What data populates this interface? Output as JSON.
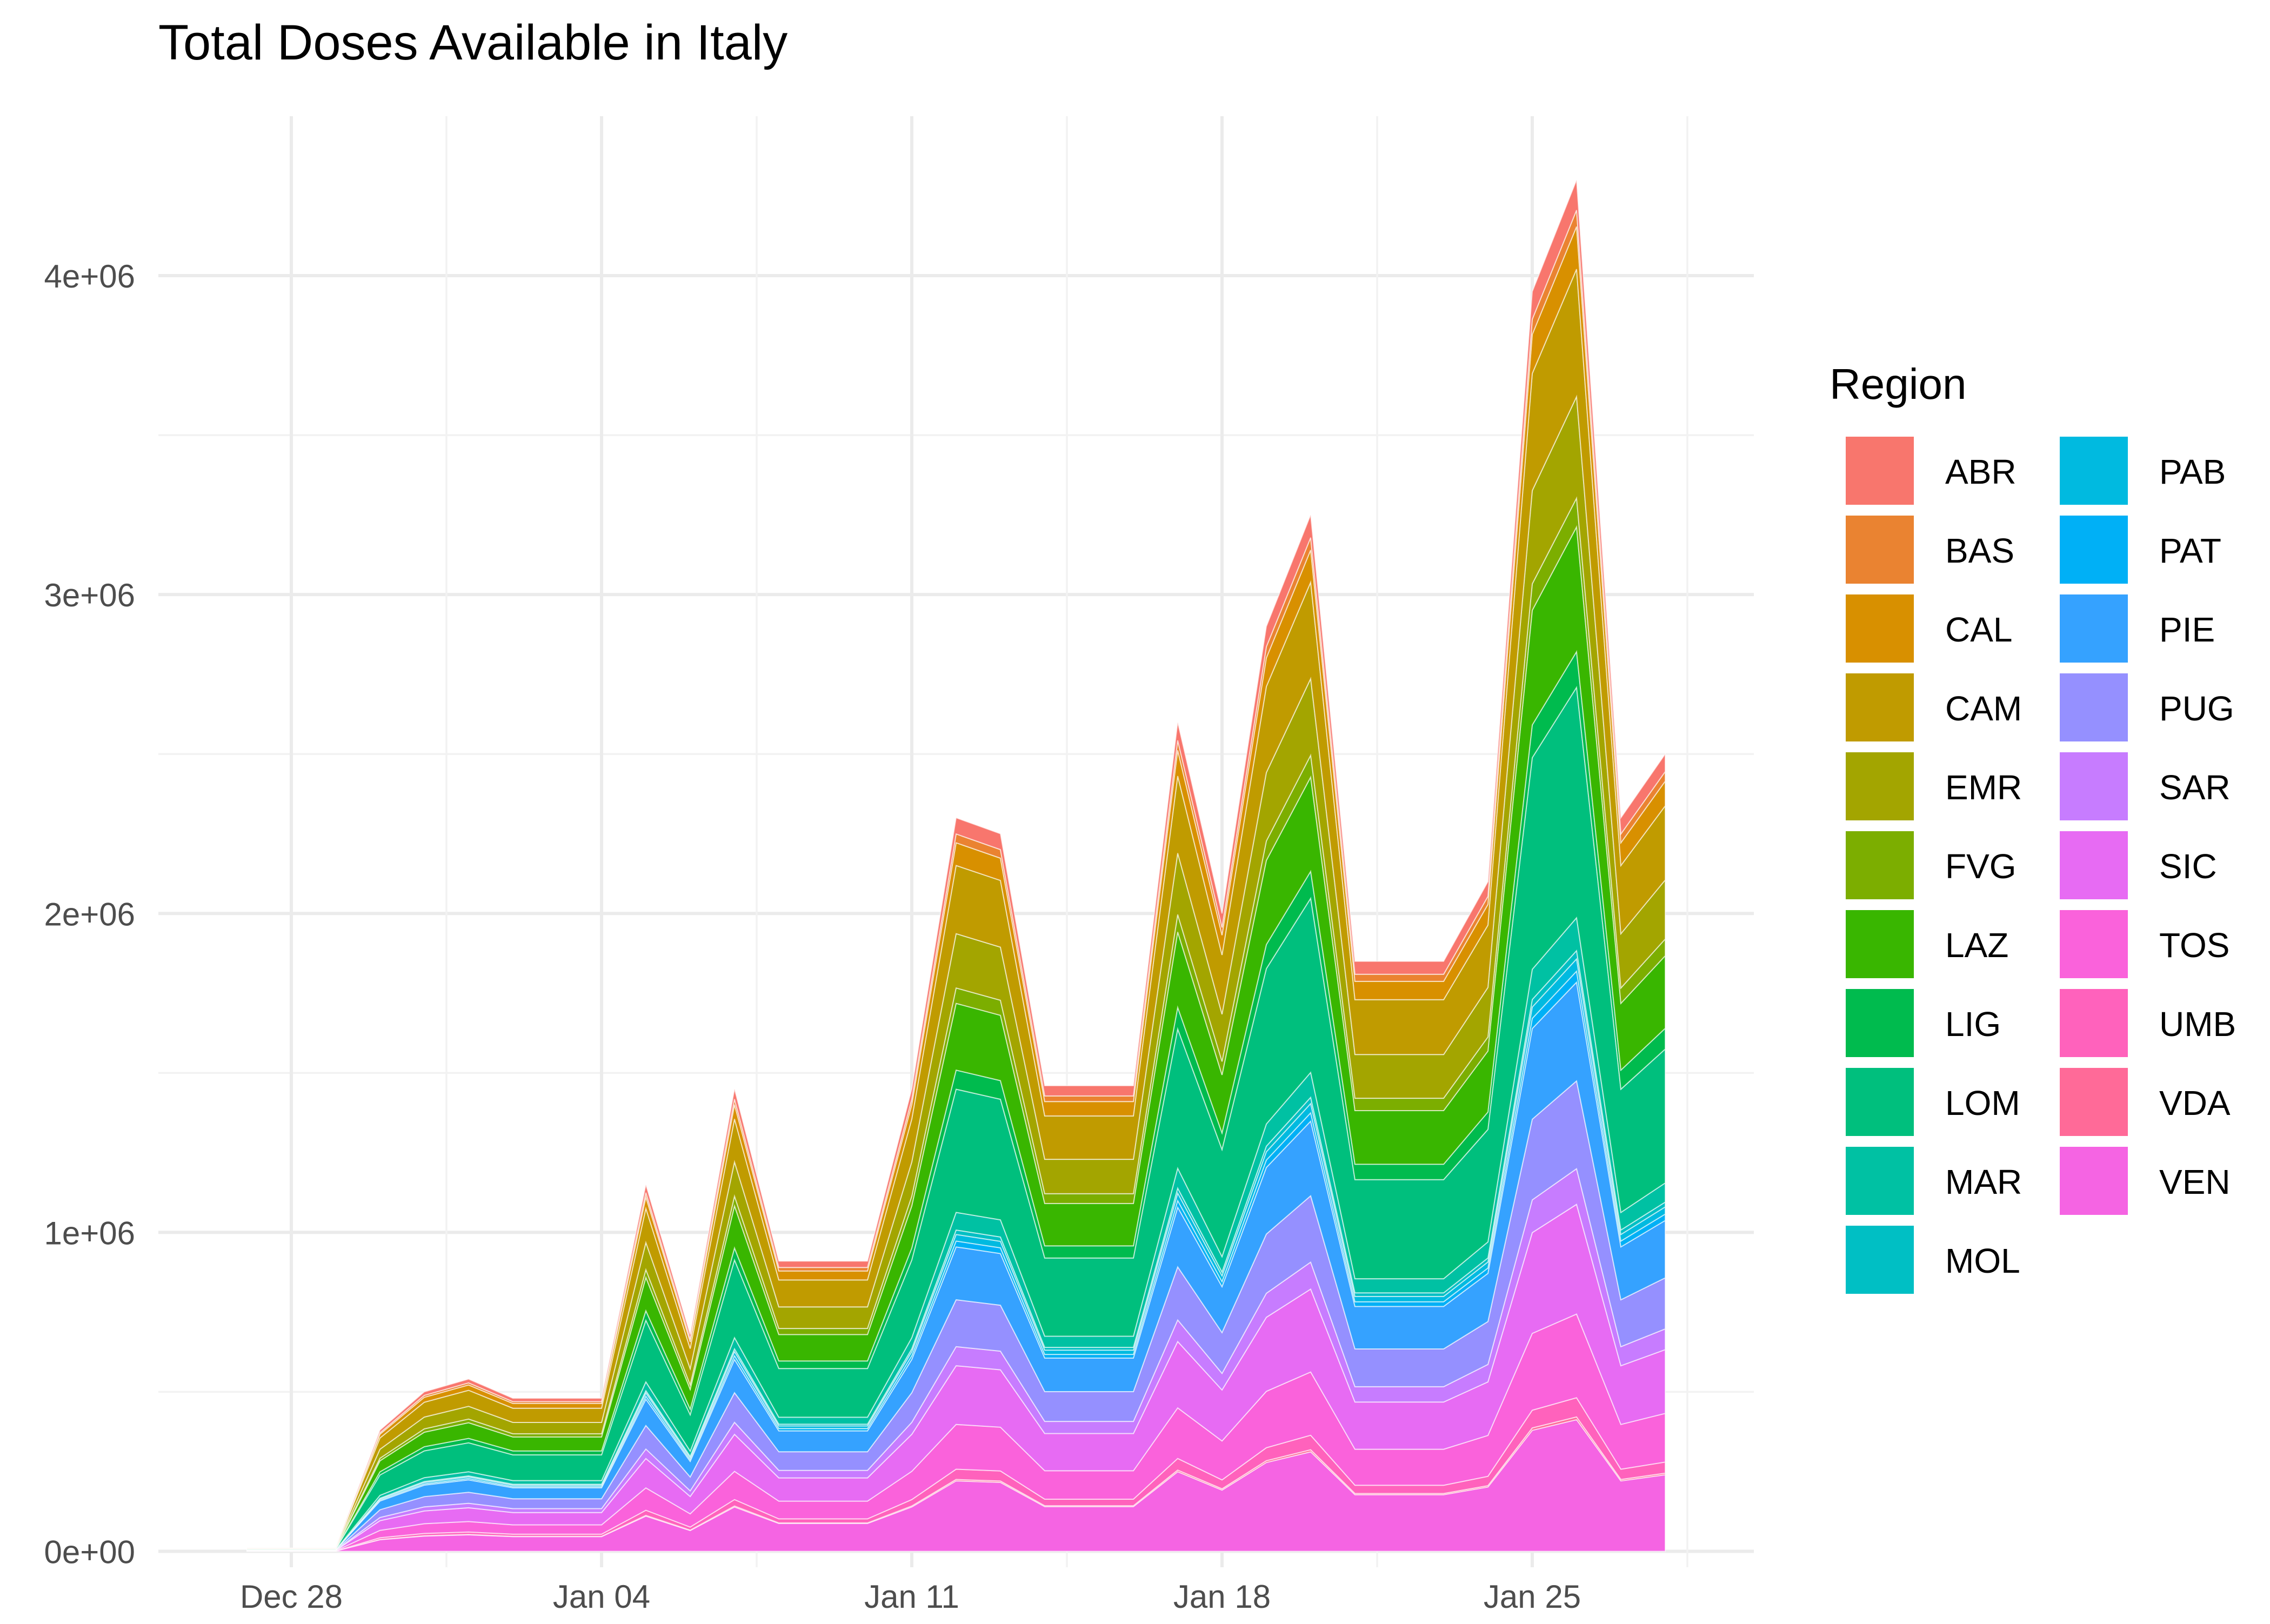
{
  "chart_data": {
    "type": "area",
    "title": "Total Doses Available in Italy",
    "xlabel": "",
    "ylabel": "",
    "legend_title": "Region",
    "legend_position": "right",
    "grid": true,
    "stacked": true,
    "x_dates": [
      "2020-12-27",
      "2020-12-28",
      "2020-12-29",
      "2020-12-30",
      "2020-12-31",
      "2021-01-01",
      "2021-01-02",
      "2021-01-03",
      "2021-01-04",
      "2021-01-05",
      "2021-01-06",
      "2021-01-07",
      "2021-01-08",
      "2021-01-09",
      "2021-01-10",
      "2021-01-11",
      "2021-01-12",
      "2021-01-13",
      "2021-01-14",
      "2021-01-15",
      "2021-01-16",
      "2021-01-17",
      "2021-01-18",
      "2021-01-19",
      "2021-01-20",
      "2021-01-21",
      "2021-01-22",
      "2021-01-23",
      "2021-01-24",
      "2021-01-25",
      "2021-01-26",
      "2021-01-27",
      "2021-01-28",
      "2021-01-29"
    ],
    "x_ticks": [
      "Dec 28",
      "Jan 04",
      "Jan 11",
      "Jan 18",
      "Jan 25"
    ],
    "x_tick_dates": [
      "2020-12-28",
      "2021-01-04",
      "2021-01-11",
      "2021-01-18",
      "2021-01-25"
    ],
    "xlim": [
      "2020-12-25",
      "2021-01-30"
    ],
    "y_ticks": [
      "0e+00",
      "1e+06",
      "2e+06",
      "3e+06",
      "4e+06"
    ],
    "y_tick_values": [
      0,
      1000000,
      2000000,
      3000000,
      4000000
    ],
    "ylim": [
      -50000,
      4500000
    ],
    "regions": [
      "ABR",
      "BAS",
      "CAL",
      "CAM",
      "EMR",
      "FVG",
      "LAZ",
      "LIG",
      "LOM",
      "MAR",
      "MOL",
      "PAB",
      "PAT",
      "PIE",
      "PUG",
      "SAR",
      "SIC",
      "TOS",
      "UMB",
      "VDA",
      "VEN"
    ],
    "colors": [
      "#F8766D",
      "#EA8331",
      "#D89000",
      "#C09B00",
      "#A3A500",
      "#7CAE00",
      "#39B600",
      "#00BB4E",
      "#00BF7D",
      "#00C1A3",
      "#00BFC4",
      "#00BAE0",
      "#00B0F6",
      "#35A2FF",
      "#9590FF",
      "#C77CFF",
      "#E76BF3",
      "#FA62DB",
      "#FF62BC",
      "#FF6A98",
      "#F564E3"
    ],
    "totals_by_day": [
      10000,
      10000,
      10000,
      380000,
      500000,
      540000,
      480000,
      480000,
      480000,
      1150000,
      680000,
      1450000,
      910000,
      910000,
      910000,
      1450000,
      2300000,
      2250000,
      1460000,
      1460000,
      1460000,
      2600000,
      2000000,
      2900000,
      3250000,
      1850000,
      1850000,
      1850000,
      2100000,
      3950000,
      4300000,
      2300000,
      2500000,
      null
    ],
    "series_share_percent": {
      "ABR": 2.2,
      "BAS": 1.2,
      "CAL": 3.1,
      "CAM": 9.3,
      "EMR": 7.4,
      "FVG": 2.1,
      "LAZ": 9.1,
      "LIG": 2.6,
      "LOM": 16.8,
      "MAR": 2.4,
      "MOL": 0.6,
      "PAB": 0.9,
      "PAT": 0.8,
      "PIE": 7.2,
      "PUG": 6.4,
      "SAR": 2.6,
      "SIC": 8.0,
      "TOS": 6.1,
      "UMB": 1.4,
      "VDA": 0.2,
      "VEN": 9.6
    }
  }
}
